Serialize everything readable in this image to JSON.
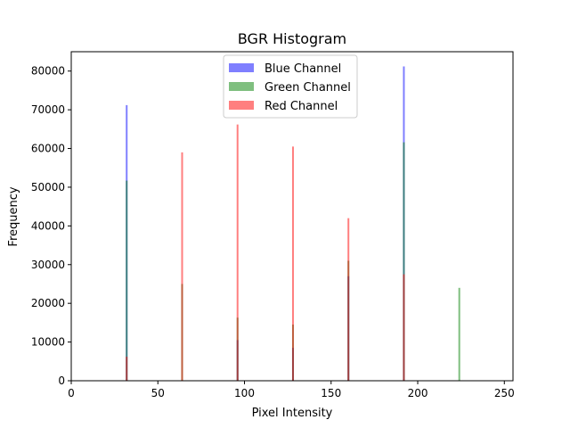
{
  "chart_data": {
    "type": "bar",
    "title": "BGR Histogram",
    "xlabel": "Pixel Intensity",
    "ylabel": "Frequency",
    "xlim": [
      0,
      255
    ],
    "ylim": [
      0,
      85000
    ],
    "xticks": [
      0,
      50,
      100,
      150,
      200,
      250
    ],
    "yticks": [
      0,
      10000,
      20000,
      30000,
      40000,
      50000,
      60000,
      70000,
      80000
    ],
    "legend_position": "top-center",
    "grid": false,
    "series": [
      {
        "name": "Blue Channel",
        "color": "#0000ff",
        "alpha": 0.5,
        "points": [
          {
            "x": 32,
            "y": 71200
          },
          {
            "x": 96,
            "y": 10500
          },
          {
            "x": 128,
            "y": 8500
          },
          {
            "x": 160,
            "y": 27000
          },
          {
            "x": 192,
            "y": 81200
          }
        ]
      },
      {
        "name": "Green Channel",
        "color": "#008000",
        "alpha": 0.5,
        "points": [
          {
            "x": 32,
            "y": 51700
          },
          {
            "x": 64,
            "y": 25000
          },
          {
            "x": 96,
            "y": 16300
          },
          {
            "x": 128,
            "y": 14500
          },
          {
            "x": 160,
            "y": 31000
          },
          {
            "x": 192,
            "y": 61600
          },
          {
            "x": 224,
            "y": 24000
          }
        ]
      },
      {
        "name": "Red Channel",
        "color": "#ff0000",
        "alpha": 0.5,
        "points": [
          {
            "x": 32,
            "y": 6200
          },
          {
            "x": 64,
            "y": 59000
          },
          {
            "x": 96,
            "y": 66200
          },
          {
            "x": 128,
            "y": 60500
          },
          {
            "x": 160,
            "y": 42000
          },
          {
            "x": 192,
            "y": 27500
          }
        ]
      }
    ]
  }
}
